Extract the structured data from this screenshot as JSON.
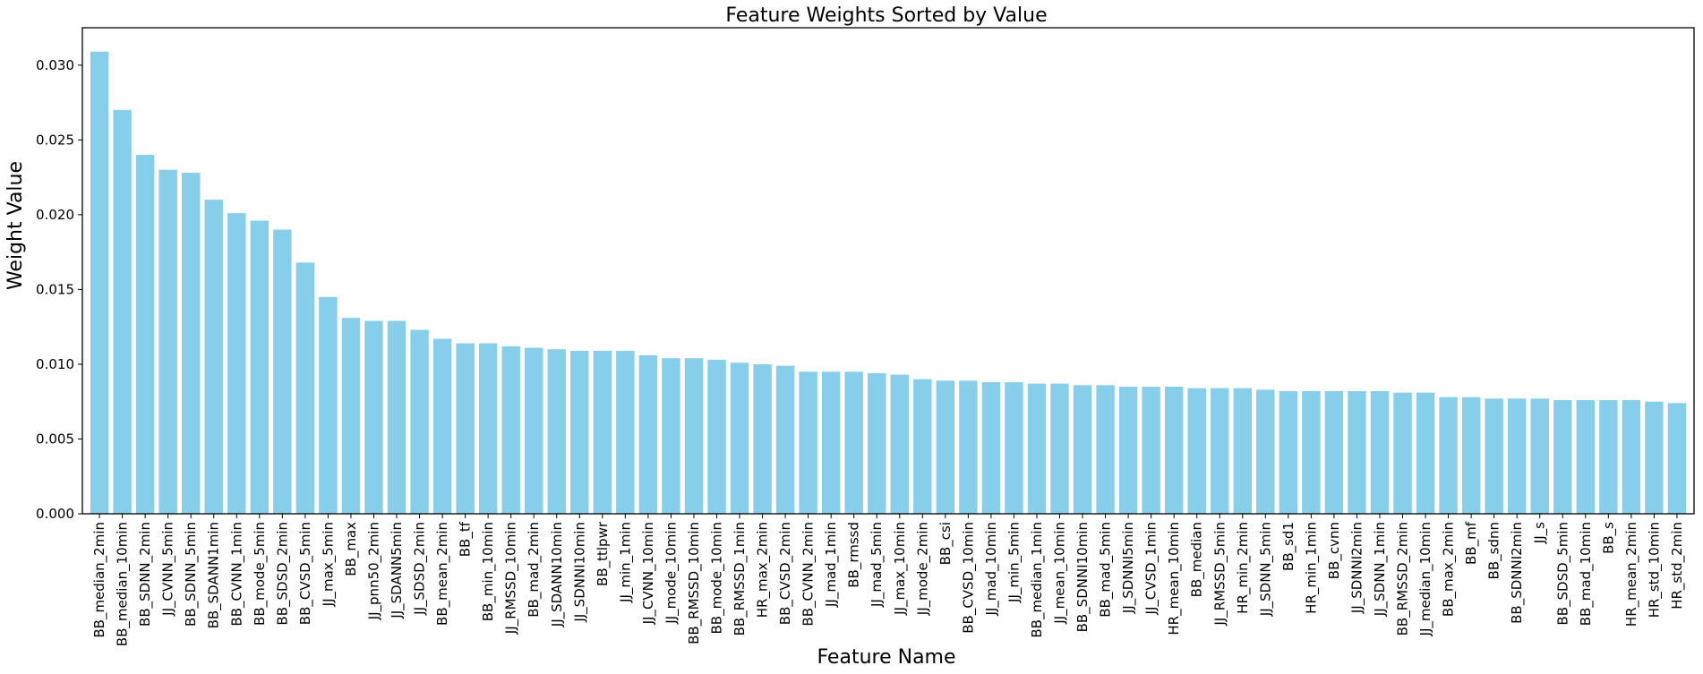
{
  "chart_data": {
    "type": "bar",
    "title": "Feature Weights Sorted by Value",
    "xlabel": "Feature Name",
    "ylabel": "Weight Value",
    "ylim": [
      0,
      0.0325
    ],
    "yticks": [
      "0.000",
      "0.005",
      "0.010",
      "0.015",
      "0.020",
      "0.025",
      "0.030"
    ],
    "ytick_values": [
      0,
      0.005,
      0.01,
      0.015,
      0.02,
      0.025,
      0.03
    ],
    "grid": false,
    "bar_color": "#87CEEB",
    "categories": [
      "BB_median_2min",
      "BB_median_10min",
      "BB_SDNN_2min",
      "JJ_CVNN_5min",
      "BB_SDNN_5min",
      "BB_SDANN1min",
      "BB_CVNN_1min",
      "BB_mode_5min",
      "BB_SDSD_2min",
      "BB_CVSD_5min",
      "JJ_max_5min",
      "BB_max",
      "JJ_pnn50_2min",
      "JJ_SDANN5min",
      "JJ_SDSD_2min",
      "BB_mean_2min",
      "BB_tf",
      "BB_min_10min",
      "JJ_RMSSD_10min",
      "BB_mad_2min",
      "JJ_SDANN10min",
      "JJ_SDNNI10min",
      "BB_ttlpwr",
      "JJ_min_1min",
      "JJ_CVNN_10min",
      "JJ_mode_10min",
      "BB_RMSSD_10min",
      "BB_mode_10min",
      "BB_RMSSD_1min",
      "HR_max_2min",
      "BB_CVSD_2min",
      "BB_CVNN_2min",
      "JJ_mad_1min",
      "BB_rmssd",
      "JJ_mad_5min",
      "JJ_max_10min",
      "JJ_mode_2min",
      "BB_csi",
      "BB_CVSD_10min",
      "JJ_mad_10min",
      "JJ_min_5min",
      "BB_median_1min",
      "JJ_mean_10min",
      "BB_SDNNI10min",
      "BB_mad_5min",
      "JJ_SDNNI5min",
      "JJ_CVSD_1min",
      "HR_mean_10min",
      "BB_median",
      "JJ_RMSSD_5min",
      "HR_min_2min",
      "JJ_SDNN_5min",
      "BB_sd1",
      "HR_min_1min",
      "BB_cvnn",
      "JJ_SDNNI2min",
      "JJ_SDNN_1min",
      "BB_RMSSD_2min",
      "JJ_median_10min",
      "BB_max_2min",
      "BB_mf",
      "BB_sdnn",
      "BB_SDNNI2min",
      "JJ_s",
      "BB_SDSD_5min",
      "BB_mad_10min",
      "BB_s",
      "HR_mean_2min",
      "HR_std_10min",
      "HR_std_2min"
    ],
    "values": [
      0.0309,
      0.027,
      0.024,
      0.023,
      0.0228,
      0.021,
      0.0201,
      0.0196,
      0.019,
      0.0168,
      0.0145,
      0.0131,
      0.0129,
      0.0129,
      0.0123,
      0.0117,
      0.0114,
      0.0114,
      0.0112,
      0.0111,
      0.011,
      0.0109,
      0.0109,
      0.0109,
      0.0106,
      0.0104,
      0.0104,
      0.0103,
      0.0101,
      0.01,
      0.0099,
      0.0095,
      0.0095,
      0.0095,
      0.0094,
      0.0093,
      0.009,
      0.0089,
      0.0089,
      0.0088,
      0.0088,
      0.0087,
      0.0087,
      0.0086,
      0.0086,
      0.0085,
      0.0085,
      0.0085,
      0.0084,
      0.0084,
      0.0084,
      0.0083,
      0.0082,
      0.0082,
      0.0082,
      0.0082,
      0.0082,
      0.0081,
      0.0081,
      0.0078,
      0.0078,
      0.0077,
      0.0077,
      0.0077,
      0.0076,
      0.0076,
      0.0076,
      0.0076,
      0.0075,
      0.0074
    ]
  }
}
